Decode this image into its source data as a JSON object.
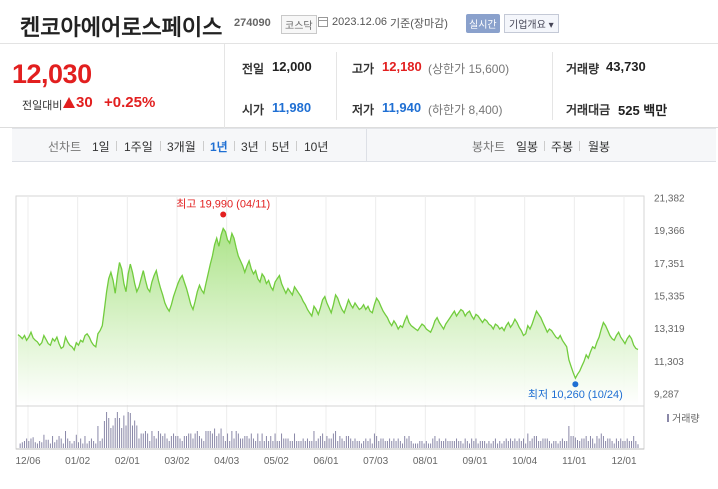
{
  "header": {
    "title": "켄코아에어로스페이스",
    "code": "274090",
    "market": "코스닥",
    "date": "2023.12.06",
    "basis": "기준(장마감)",
    "realtime_label": "실시간",
    "overview_label": "기업개요 ▾"
  },
  "quote": {
    "price": "12,030",
    "change_label": "전일대비",
    "change_value": "30",
    "change_pct": "+0.25%",
    "prev_close_label": "전일",
    "prev_close": "12,000",
    "high_label": "고가",
    "high": "12,180",
    "upper_limit": "(상한가 15,600)",
    "volume_label": "거래량",
    "volume": "43,730",
    "open_label": "시가",
    "open": "11,980",
    "low_label": "저가",
    "low": "11,940",
    "lower_limit": "(하한가 8,400)",
    "amount_label": "거래대금",
    "amount": "525 백만"
  },
  "tabs": {
    "line_label": "선차트",
    "periods": [
      "1일",
      "1주일",
      "3개월",
      "1년",
      "3년",
      "5년",
      "10년"
    ],
    "active_period": "1년",
    "candle_label": "봉차트",
    "candles": [
      "일봉",
      "주봉",
      "월봉"
    ]
  },
  "colors": {
    "up": "#e21f1f",
    "down": "#1f6fd3",
    "line": "#7ad14a",
    "volume": "#8a88a8"
  },
  "chart_data": {
    "type": "area",
    "y_ticks": [
      "21,382",
      "19,366",
      "17,351",
      "15,335",
      "13,319",
      "11,303",
      "9,287"
    ],
    "ylim": [
      9287,
      21382
    ],
    "x_ticks": [
      "12/06",
      "01/02",
      "02/01",
      "03/02",
      "04/03",
      "05/02",
      "06/01",
      "07/03",
      "08/01",
      "09/01",
      "10/04",
      "11/01",
      "12/01"
    ],
    "high_annotation": "최고 19,990 (04/11)",
    "low_annotation": "최저 10,260 (10/24)",
    "high_value": 19990,
    "low_value": 10260,
    "volume_legend": "거래량",
    "series": [
      {
        "values": [
          12950,
          12850,
          12700,
          12900,
          12600,
          12800,
          13100,
          12750,
          12600,
          12500,
          12300,
          12450,
          12900,
          12650,
          12400,
          12300,
          12700,
          12550,
          12800,
          12400,
          12100,
          12200,
          12800,
          12500,
          12300,
          12200,
          12000,
          12450,
          12300,
          12600,
          12500,
          12900,
          13000,
          12800,
          12500,
          12300,
          12200,
          13000,
          13200,
          13500,
          14500,
          15600,
          16400,
          16800,
          16300,
          15500,
          16600,
          17400,
          17000,
          16100,
          15600,
          16700,
          17300,
          16800,
          16100,
          15600,
          15900,
          16400,
          16900,
          16300,
          15800,
          15600,
          16200,
          16600,
          16900,
          16300,
          15800,
          15400,
          14900,
          14600,
          14400,
          14800,
          15300,
          15700,
          16100,
          16400,
          16600,
          16200,
          15800,
          15300,
          14800,
          14500,
          15000,
          15600,
          16000,
          15700,
          15500,
          16100,
          16700,
          17300,
          17800,
          18500,
          18900,
          18400,
          19100,
          19500,
          19300,
          18800,
          18600,
          19200,
          18900,
          18300,
          17800,
          17500,
          17200,
          16800,
          17200,
          17500,
          17000,
          16700,
          16900,
          16400,
          16200,
          16700,
          16500,
          16100,
          16300,
          15900,
          15700,
          16200,
          16400,
          16600,
          16100,
          15800,
          15500,
          15800,
          15600,
          15400,
          15900,
          15700,
          15500,
          15300,
          15000,
          14800,
          14500,
          14300,
          14100,
          14700,
          14500,
          14200,
          14600,
          15100,
          15300,
          14900,
          14600,
          14300,
          14800,
          15400,
          15200,
          14800,
          14500,
          14300,
          14700,
          15100,
          14800,
          14600,
          14900,
          14700,
          14500,
          14600,
          14800,
          14500,
          14700,
          14400,
          14300,
          14800,
          15200,
          15000,
          14700,
          14400,
          14200,
          14000,
          13700,
          13500,
          13800,
          13600,
          13300,
          13500,
          13400,
          13800,
          14100,
          13700,
          13500,
          13400,
          13300,
          13200,
          13400,
          13600,
          13500,
          13300,
          13200,
          13100,
          13400,
          13800,
          14000,
          13700,
          13500,
          13300,
          13600,
          13800,
          14000,
          14200,
          14400,
          14100,
          14300,
          14500,
          14400,
          14100,
          14300,
          14400,
          14100,
          13900,
          14200,
          14100,
          13900,
          13700,
          13900,
          13800,
          13600,
          13500,
          13300,
          13600,
          13500,
          13300,
          13400,
          13200,
          13500,
          13700,
          13400,
          13600,
          13900,
          13700,
          13400,
          13200,
          12900,
          13000,
          13500,
          13300,
          13600,
          14000,
          14400,
          14200,
          14000,
          13700,
          13400,
          13100,
          13300,
          13200,
          13000,
          12800,
          12700,
          12900,
          12600,
          12400,
          12200,
          11400,
          11000,
          10600,
          10260,
          10500,
          10700,
          11000,
          11300,
          11700,
          11500,
          11900,
          12200,
          12100,
          12500,
          12800,
          13300,
          13700,
          13500,
          13200,
          12900,
          12700,
          12600,
          12900,
          13100,
          12800,
          12600,
          12400,
          12700,
          12900,
          12700,
          12300,
          12100,
          12030
        ]
      }
    ]
  }
}
